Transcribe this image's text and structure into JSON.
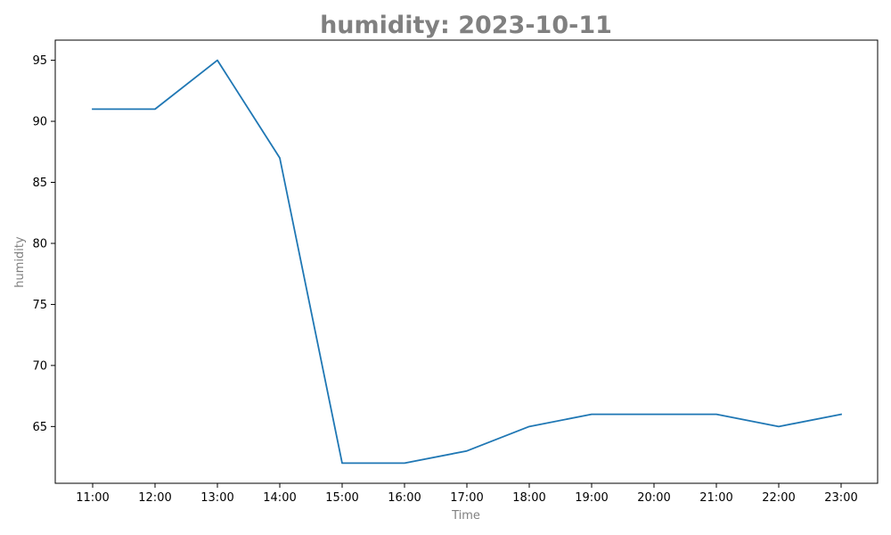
{
  "chart_data": {
    "type": "line",
    "title": "humidity: 2023-10-11",
    "xlabel": "Time",
    "ylabel": "humidity",
    "categories": [
      "11:00",
      "12:00",
      "13:00",
      "14:00",
      "15:00",
      "16:00",
      "17:00",
      "18:00",
      "19:00",
      "20:00",
      "21:00",
      "22:00",
      "23:00"
    ],
    "series": [
      {
        "values": [
          91,
          91,
          95,
          87,
          62,
          62,
          63,
          65,
          66,
          66,
          66,
          65,
          66
        ]
      }
    ],
    "yticks": [
      65,
      70,
      75,
      80,
      85,
      90,
      95
    ],
    "ylim": [
      60.35,
      96.65
    ],
    "grid": false,
    "legend": "none",
    "line_color": "#1f77b4",
    "title_color": "#808080",
    "label_color": "#808080"
  }
}
